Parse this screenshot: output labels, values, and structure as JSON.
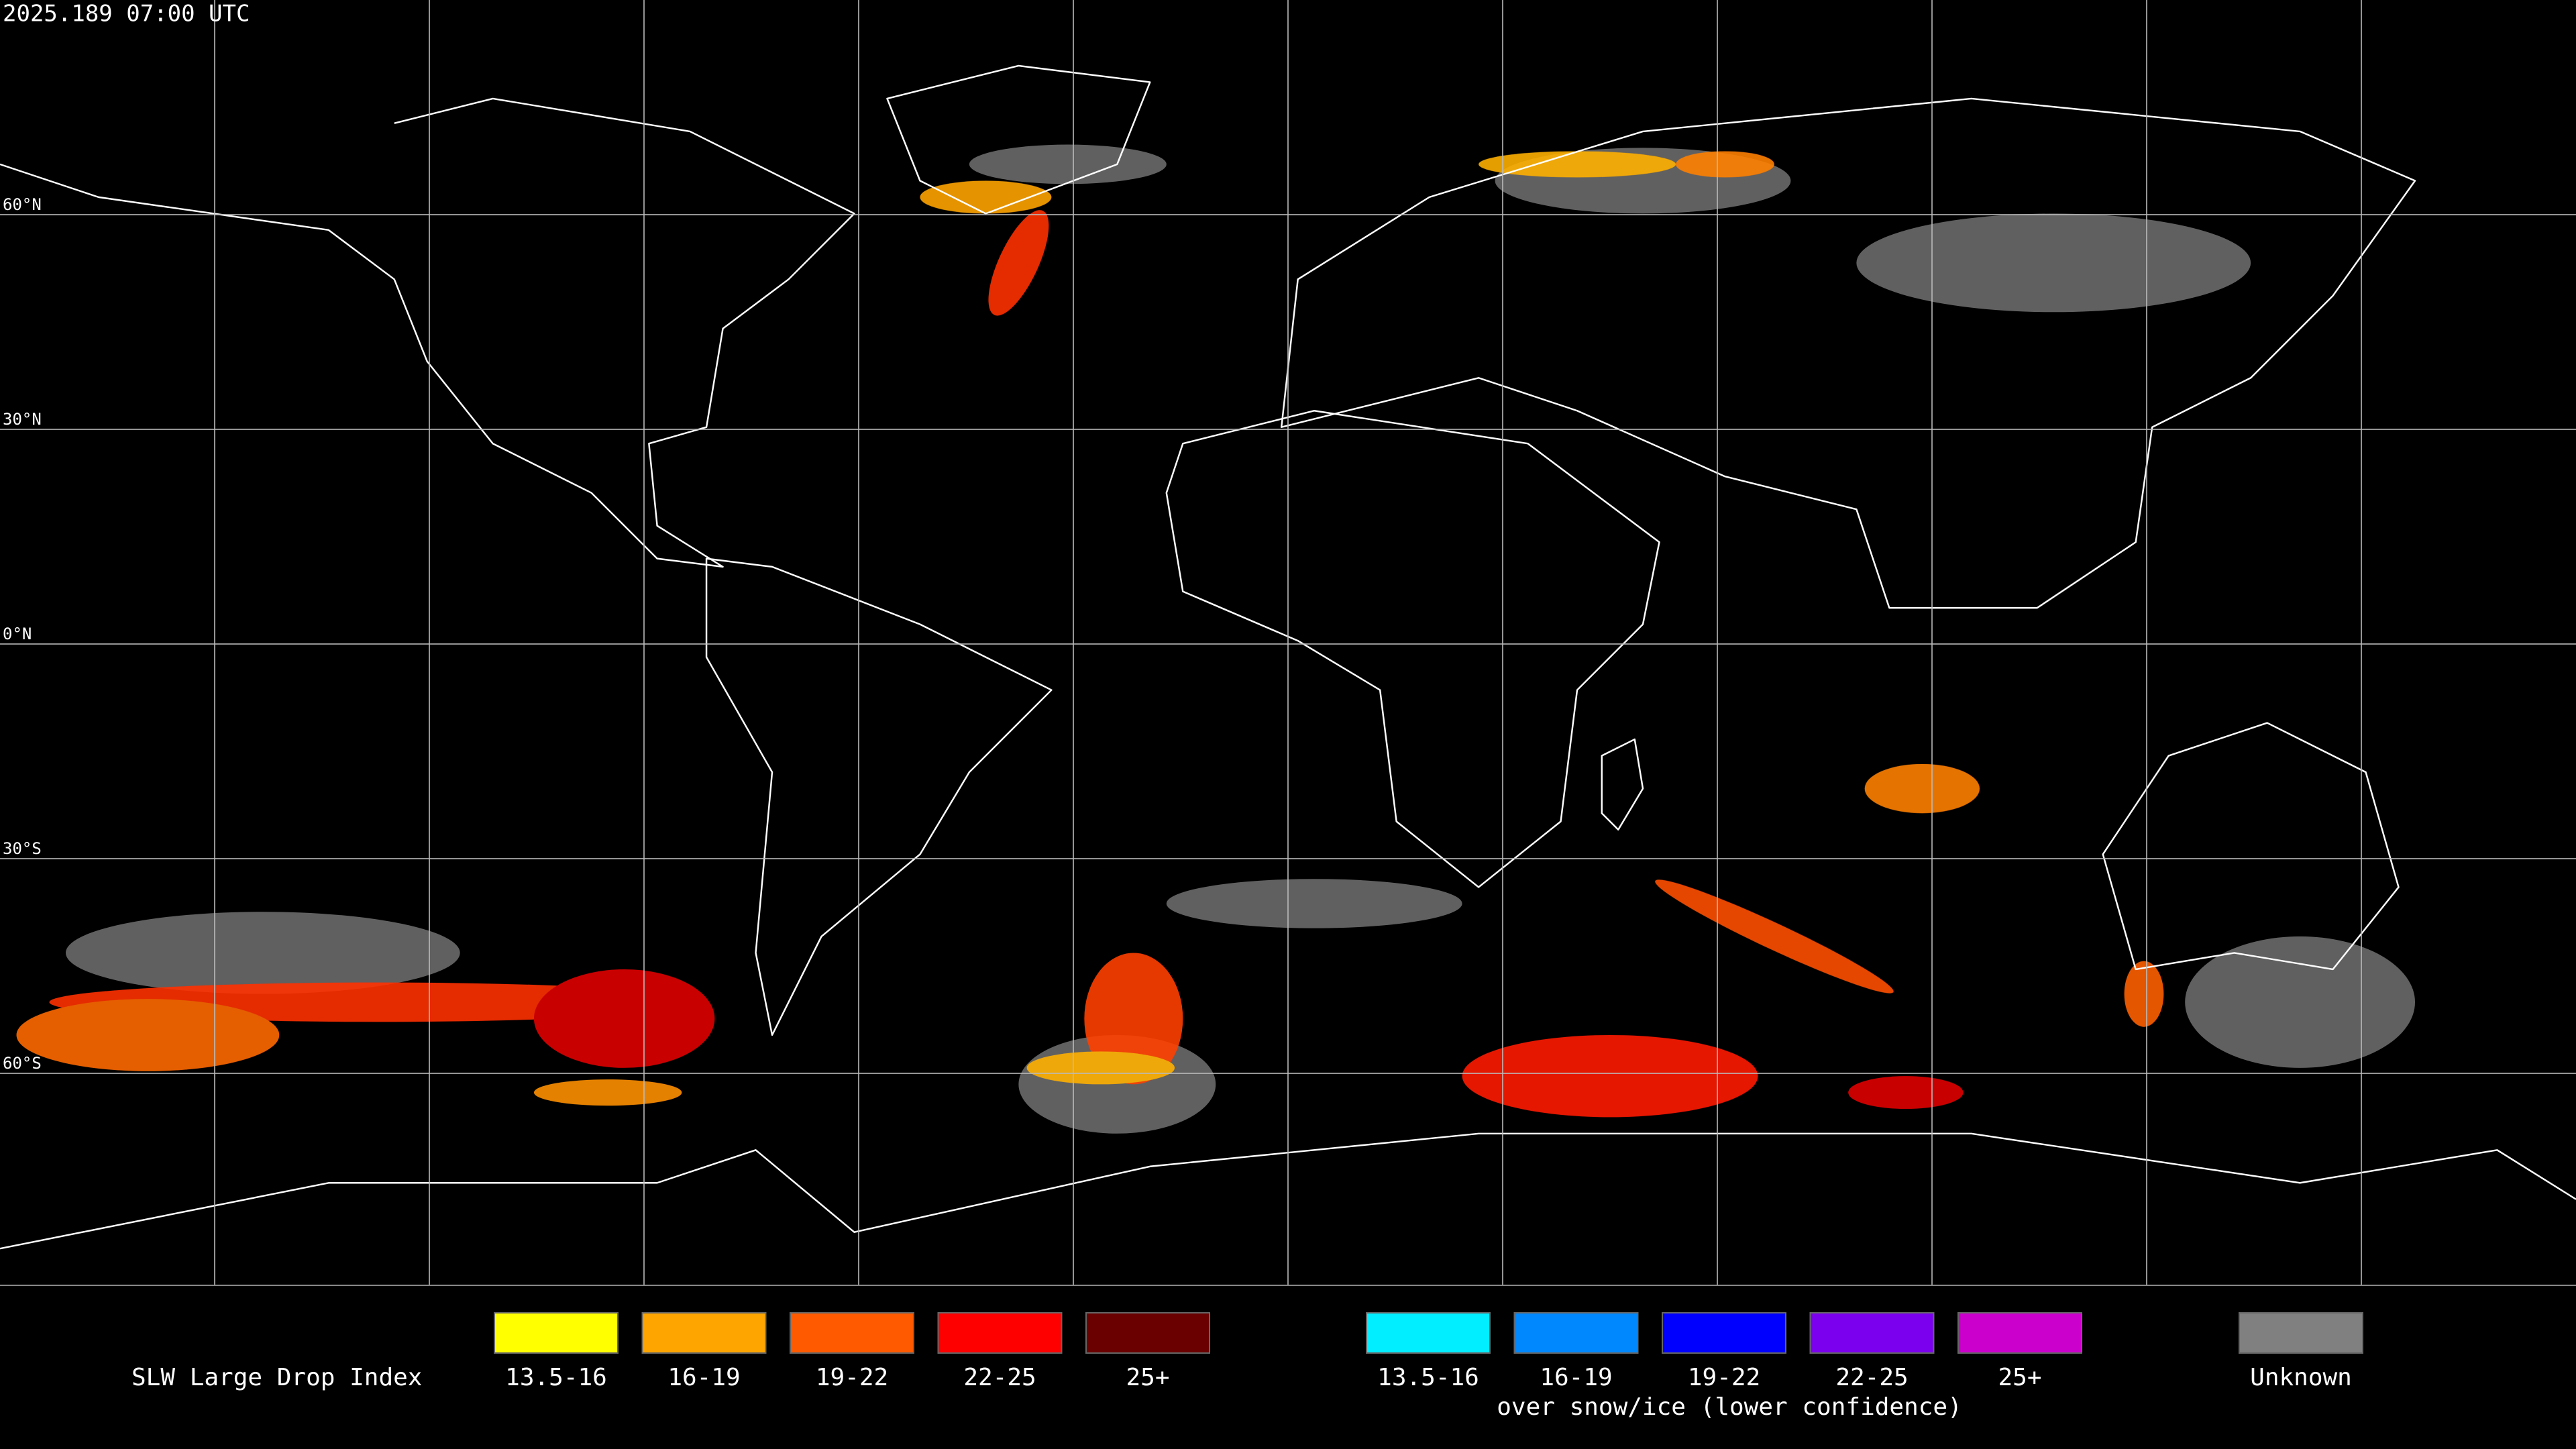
{
  "header": {
    "timestamp": "2025.189 07:00 UTC"
  },
  "map": {
    "lat_labels": [
      "60°N",
      "30°N",
      "0°N",
      "30°S",
      "60°S"
    ]
  },
  "legend": {
    "title": "SLW Large Drop Index",
    "items": [
      {
        "label": "13.5-16",
        "color": "#ffff00"
      },
      {
        "label": "16-19",
        "color": "#ffa500"
      },
      {
        "label": "19-22",
        "color": "#ff5a00"
      },
      {
        "label": "22-25",
        "color": "#ff0000"
      },
      {
        "label": "25+",
        "color": "#6a0000"
      }
    ],
    "snow_items": [
      {
        "label": "13.5-16",
        "color": "#00eeff"
      },
      {
        "label": "16-19",
        "color": "#0088ff"
      },
      {
        "label": "19-22",
        "color": "#0000ff"
      },
      {
        "label": "22-25",
        "color": "#7a00ee"
      },
      {
        "label": "25+",
        "color": "#cc00cc"
      }
    ],
    "snow_caption": "over snow/ice (lower confidence)",
    "unknown": {
      "label": "Unknown",
      "color": "#808080"
    }
  }
}
